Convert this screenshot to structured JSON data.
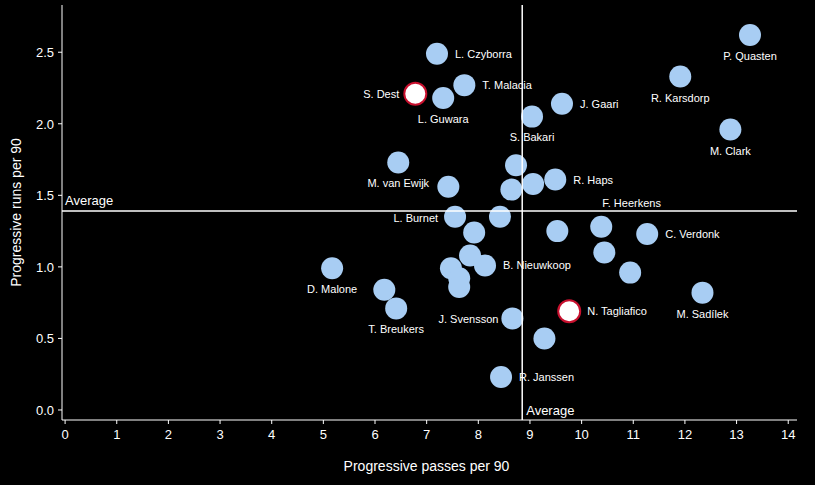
{
  "chart_data": {
    "type": "scatter",
    "x_label": "Progressive passes per 90",
    "y_label": "Progressive runs per 90",
    "xlim": [
      -0.06,
      14.17
    ],
    "ylim": [
      -0.07,
      2.83
    ],
    "xticks": [
      0,
      1,
      2,
      3,
      4,
      5,
      6,
      7,
      8,
      9,
      10,
      11,
      12,
      13,
      14
    ],
    "yticks": [
      {
        "value": 0,
        "label": "0.0"
      },
      0.5,
      {
        "value": 1,
        "label": "1.0"
      },
      1.5,
      {
        "value": 2,
        "label": "2.0"
      },
      2.5
    ],
    "grid": false,
    "marker": "circle",
    "labels": [
      "P. Quasten",
      "L. Czyborra",
      "T. Malacia",
      "S. Dest",
      "L. Guwara",
      "R. Karsdorp",
      "J. Gaari",
      "S. Bakari",
      "M. Clark",
      "M. van Ewijk",
      "R. Haps",
      "F. Heerkens",
      "C. Verdonk",
      "L. Burnet",
      "B. Nieuwkoop",
      "D. Malone",
      "T. Breukers",
      "J. Svensson",
      "N. Tagliafico",
      "M. Sadílek",
      "R. Janssen",
      null,
      null,
      null,
      null,
      null,
      null,
      null,
      null,
      null,
      null,
      null,
      null,
      null,
      null,
      null
    ],
    "x": [
      13.26,
      7.2,
      7.73,
      6.78,
      7.32,
      11.91,
      9.62,
      9.04,
      12.88,
      6.45,
      9.49,
      10.38,
      11.27,
      7.55,
      8.13,
      5.17,
      6.41,
      8.66,
      9.76,
      12.34,
      8.44,
      8.73,
      9.06,
      8.64,
      7.42,
      8.42,
      9.53,
      7.92,
      10.44,
      7.84,
      7.47,
      7.63,
      7.63,
      10.94,
      6.18,
      9.28
    ],
    "y": [
      2.62,
      2.49,
      2.27,
      2.21,
      2.18,
      2.33,
      2.14,
      2.05,
      1.96,
      1.73,
      1.61,
      1.28,
      1.23,
      1.35,
      1.01,
      0.99,
      0.71,
      0.64,
      0.69,
      0.82,
      0.23,
      1.71,
      1.58,
      1.54,
      1.56,
      1.35,
      1.25,
      1.24,
      1.1,
      1.08,
      0.99,
      0.92,
      0.86,
      0.96,
      0.84,
      0.5
    ],
    "colors": [
      "#a8cdf3",
      "#a8cdf3",
      "#a8cdf3",
      "#ffffff",
      "#a8cdf3",
      "#a8cdf3",
      "#a8cdf3",
      "#a8cdf3",
      "#a8cdf3",
      "#a8cdf3",
      "#a8cdf3",
      "#a8cdf3",
      "#a8cdf3",
      "#a8cdf3",
      "#a8cdf3",
      "#a8cdf3",
      "#a8cdf3",
      "#a8cdf3",
      "#ffffff",
      "#a8cdf3",
      "#a8cdf3",
      "#a8cdf3",
      "#a8cdf3",
      "#a8cdf3",
      "#a8cdf3",
      "#a8cdf3",
      "#a8cdf3",
      "#a8cdf3",
      "#a8cdf3",
      "#a8cdf3",
      "#a8cdf3",
      "#a8cdf3",
      "#a8cdf3",
      "#a8cdf3",
      "#a8cdf3",
      "#a8cdf3"
    ],
    "reference_lines": [
      {
        "axis": "x",
        "value": 8.85,
        "label": "Average"
      },
      {
        "axis": "y",
        "value": 1.39,
        "label": "Average"
      }
    ]
  }
}
